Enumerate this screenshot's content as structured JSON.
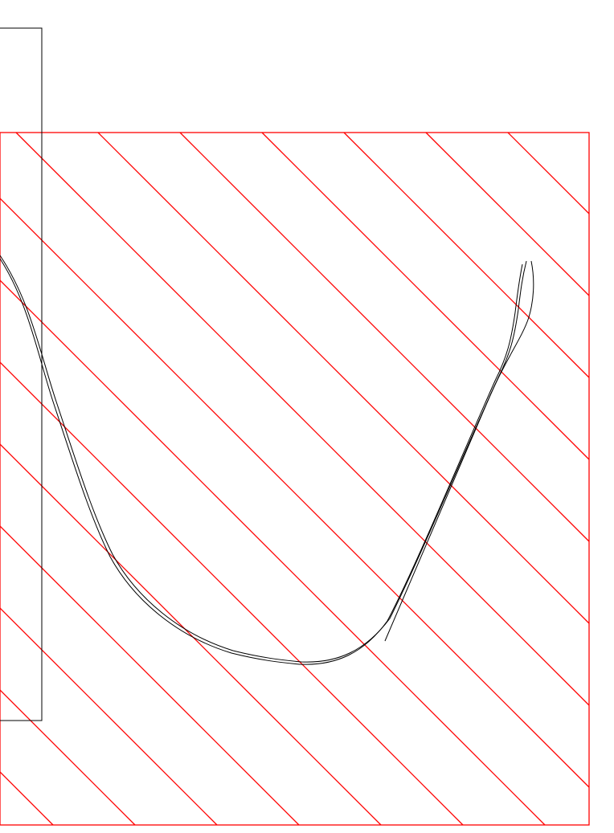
{
  "drawing": {
    "background_color": "#ffffff",
    "hatch_region": {
      "stroke_color": "#ff0000",
      "hatch_pattern": "diagonal-lines-down-right"
    },
    "outline_box": {
      "stroke_color": "#000000"
    },
    "curve": {
      "stroke_color": "#000000",
      "strand_count": 3
    }
  }
}
